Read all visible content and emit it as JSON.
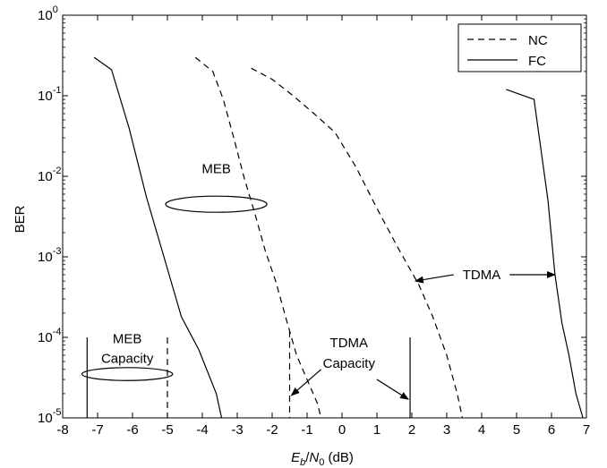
{
  "chart_data": {
    "type": "line",
    "title": "",
    "xlabel": {
      "italic_base_1": "E",
      "sub_1": "b",
      "slash": "/",
      "italic_base_2": "N",
      "sub_2": "0",
      "unit": " (dB)"
    },
    "ylabel": "BER",
    "x_scale": "linear",
    "y_scale": "log",
    "xlim": [
      -8,
      7
    ],
    "ylim": [
      1e-05,
      1
    ],
    "x_ticks": [
      -8,
      -7,
      -6,
      -5,
      -4,
      -3,
      -2,
      -1,
      0,
      1,
      2,
      3,
      4,
      5,
      6,
      7
    ],
    "x_tick_labels": [
      "-8",
      "-7",
      "-6",
      "-5",
      "-4",
      "-3",
      "-2",
      "-1",
      "0",
      "1",
      "2",
      "3",
      "4",
      "5",
      "6",
      "7"
    ],
    "y_ticks": [
      {
        "value": 1e-05,
        "base": "10",
        "exp": "-5"
      },
      {
        "value": 0.0001,
        "base": "10",
        "exp": "-4"
      },
      {
        "value": 0.001,
        "base": "10",
        "exp": "-3"
      },
      {
        "value": 0.01,
        "base": "10",
        "exp": "-2"
      },
      {
        "value": 0.1,
        "base": "10",
        "exp": "-1"
      },
      {
        "value": 1,
        "base": "10",
        "exp": "0"
      }
    ],
    "grid": false,
    "legend": {
      "placement": "top-right",
      "entries": [
        {
          "label": "NC",
          "style": "dashed"
        },
        {
          "label": "FC",
          "style": "solid"
        }
      ]
    },
    "series": [
      {
        "name": "FC",
        "group": "MEB",
        "style": "solid",
        "x": [
          -7.1,
          -6.6,
          -6.1,
          -5.6,
          -5.1,
          -4.6,
          -4.1,
          -3.6,
          -3.45
        ],
        "y": [
          0.3,
          0.21,
          0.04,
          0.0055,
          0.001,
          0.00018,
          7e-05,
          2e-05,
          1e-05
        ]
      },
      {
        "name": "NC",
        "group": "MEB",
        "style": "dashed",
        "x": [
          -4.2,
          -3.7,
          -3.4,
          -3.1,
          -2.8,
          -2.5,
          -2.2,
          -1.9,
          -1.6,
          -1.3,
          -1.0,
          -0.7,
          -0.6
        ],
        "y": [
          0.3,
          0.2,
          0.09,
          0.03,
          0.0095,
          0.0035,
          0.0012,
          0.0005,
          0.00017,
          6e-05,
          3e-05,
          1.5e-05,
          1e-05
        ]
      },
      {
        "name": "NC",
        "group": "TDMA",
        "style": "dashed",
        "x": [
          -2.6,
          -2.0,
          -1.4,
          -0.8,
          -0.2,
          0.4,
          1.0,
          1.6,
          2.2,
          2.6,
          3.0,
          3.3,
          3.45
        ],
        "y": [
          0.22,
          0.16,
          0.1,
          0.06,
          0.035,
          0.013,
          0.004,
          0.0013,
          0.00045,
          0.00018,
          6e-05,
          2e-05,
          1e-05
        ]
      },
      {
        "name": "FC",
        "group": "TDMA",
        "style": "solid",
        "x": [
          4.7,
          5.5,
          5.9,
          6.1,
          6.3,
          6.5,
          6.7,
          6.9
        ],
        "y": [
          0.12,
          0.09,
          0.005,
          0.0006,
          0.00015,
          6e-05,
          2e-05,
          1e-05
        ]
      }
    ],
    "capacity_lines": [
      {
        "label_group": "MEB",
        "style": "solid",
        "x": -7.3,
        "y_top": 0.0001
      },
      {
        "label_group": "MEB",
        "style": "dashed",
        "x": -5.0,
        "y_top": 0.0001
      },
      {
        "label_group": "TDMA",
        "style": "dashed",
        "x": -1.5,
        "y_top": 0.00012
      },
      {
        "label_group": "TDMA",
        "style": "solid",
        "x": 1.95,
        "y_top": 0.0001
      }
    ],
    "annotations": {
      "meb": {
        "text": "MEB",
        "ellipse": {
          "cx": -3.6,
          "cy": 0.0045,
          "rx": 1.45,
          "ry_decades": 0.1
        },
        "label_x": -3.6,
        "label_y": 0.011
      },
      "meb_capacity": {
        "lines": [
          "MEB",
          "Capacity"
        ],
        "ellipse": {
          "cx": -6.15,
          "cy": 3.5e-05,
          "rx": 1.3,
          "ry_decades": 0.08
        },
        "label_x": -6.15,
        "label_y1": 8.5e-05,
        "label_y2": 4.8e-05
      },
      "tdma": {
        "text": "TDMA",
        "label_x": 4.0,
        "label_y": 0.0006,
        "arrows": [
          {
            "from_x": 3.2,
            "from_y": 0.0006,
            "to_x": 2.1,
            "to_y": 0.0005
          },
          {
            "from_x": 4.8,
            "from_y": 0.0006,
            "to_x": 6.1,
            "to_y": 0.0006
          }
        ]
      },
      "tdma_capacity": {
        "lines": [
          "TDMA",
          "Capacity"
        ],
        "label_x": 0.2,
        "label_y1": 7.5e-05,
        "label_y2": 4.2e-05,
        "arrows": [
          {
            "from_x": -0.6,
            "from_y": 4e-05,
            "to_x": -1.45,
            "to_y": 1.9e-05
          },
          {
            "from_x": 1.0,
            "from_y": 3e-05,
            "to_x": 1.9,
            "to_y": 1.7e-05
          }
        ]
      }
    }
  }
}
